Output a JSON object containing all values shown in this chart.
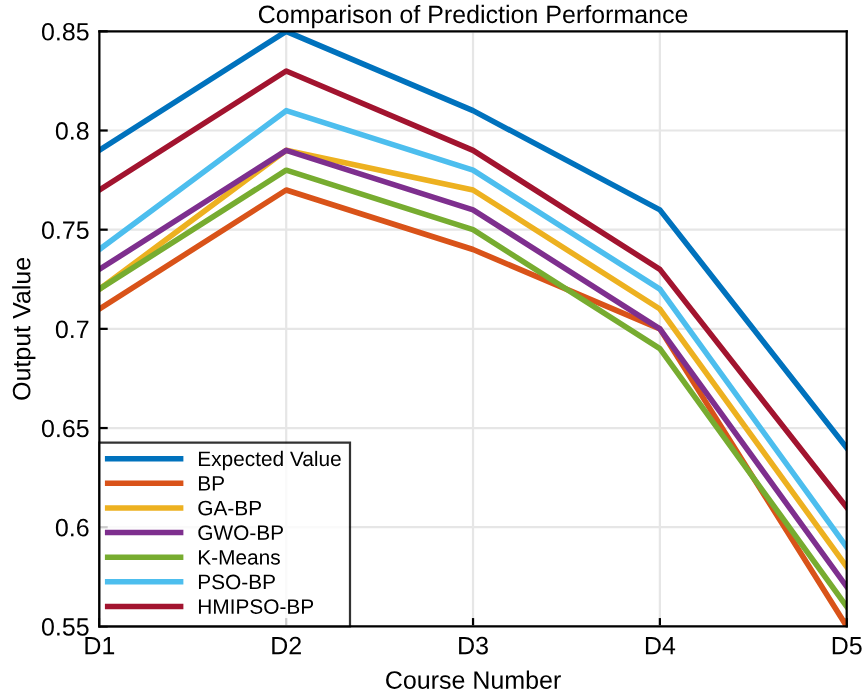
{
  "chart_data": {
    "type": "line",
    "title": "Comparison of Prediction Performance",
    "xlabel": "Course Number",
    "ylabel": "Output Value",
    "categories": [
      "D1",
      "D2",
      "D3",
      "D4",
      "D5"
    ],
    "series": [
      {
        "name": "Expected Value",
        "color": "#0072bd",
        "values": [
          0.79,
          0.85,
          0.81,
          0.76,
          0.64
        ]
      },
      {
        "name": "BP",
        "color": "#d95319",
        "values": [
          0.71,
          0.77,
          0.74,
          0.7,
          0.55
        ]
      },
      {
        "name": "GA-BP",
        "color": "#edb120",
        "values": [
          0.72,
          0.79,
          0.77,
          0.71,
          0.58
        ]
      },
      {
        "name": "GWO-BP",
        "color": "#7e2f8e",
        "values": [
          0.73,
          0.79,
          0.76,
          0.7,
          0.57
        ]
      },
      {
        "name": "K-Means",
        "color": "#77ac30",
        "values": [
          0.72,
          0.78,
          0.75,
          0.69,
          0.56
        ]
      },
      {
        "name": "PSO-BP",
        "color": "#4dbeee",
        "values": [
          0.74,
          0.81,
          0.78,
          0.72,
          0.59
        ]
      },
      {
        "name": "HMIPSO-BP",
        "color": "#a2142f",
        "values": [
          0.77,
          0.83,
          0.79,
          0.73,
          0.61
        ]
      }
    ],
    "ylim": [
      0.55,
      0.85
    ],
    "yticks": [
      0.55,
      0.6,
      0.65,
      0.7,
      0.75,
      0.8,
      0.85
    ],
    "grid": true,
    "legend": "bottom left",
    "line_style": "solid",
    "marker": "none"
  }
}
